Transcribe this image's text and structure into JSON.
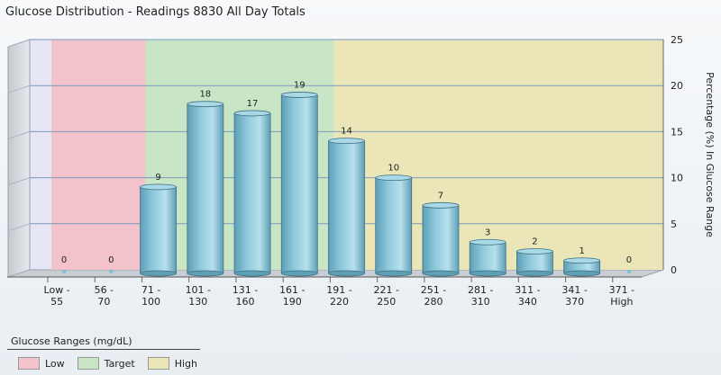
{
  "header": {
    "title": "Glucose Distribution - Readings 8830 All Day Totals"
  },
  "chart_data": {
    "type": "bar",
    "categories": [
      [
        "Low -",
        "55"
      ],
      [
        "56 -",
        "70"
      ],
      [
        "71 -",
        "100"
      ],
      [
        "101 -",
        "130"
      ],
      [
        "131 -",
        "160"
      ],
      [
        "161 -",
        "190"
      ],
      [
        "191 -",
        "220"
      ],
      [
        "221 -",
        "250"
      ],
      [
        "251 -",
        "280"
      ],
      [
        "281 -",
        "310"
      ],
      [
        "311 -",
        "340"
      ],
      [
        "341 -",
        "370"
      ],
      [
        "371 -",
        "High"
      ]
    ],
    "values": [
      0,
      0,
      9,
      18,
      17,
      19,
      14,
      10,
      7,
      3,
      2,
      1,
      0
    ],
    "data_labels": [
      "0",
      "0",
      "9",
      "18",
      "17",
      "19",
      "14",
      "10",
      "7",
      "3",
      "2",
      "1",
      "0"
    ],
    "xlabel": "",
    "ylabel": "Percentage (%) In Glucose Range",
    "ylim": [
      0,
      25
    ],
    "yticks": [
      0,
      5,
      10,
      15,
      20,
      25
    ],
    "grid": true,
    "bar_color": "#8ec9dc",
    "ranges": [
      {
        "name": "Low",
        "from": 0,
        "to": 2,
        "color": "#f3c3cc"
      },
      {
        "name": "Target",
        "from": 2,
        "to": 6,
        "color": "#c8e6c6"
      },
      {
        "name": "High",
        "from": 6,
        "to": 13,
        "color": "#ebe6b8"
      }
    ]
  },
  "legend": {
    "title": "Glucose Ranges (mg/dL)",
    "items": [
      {
        "label": "Low",
        "color": "#f3c3cc"
      },
      {
        "label": "Target",
        "color": "#c8e6c6"
      },
      {
        "label": "High",
        "color": "#ebe6b8"
      }
    ]
  }
}
